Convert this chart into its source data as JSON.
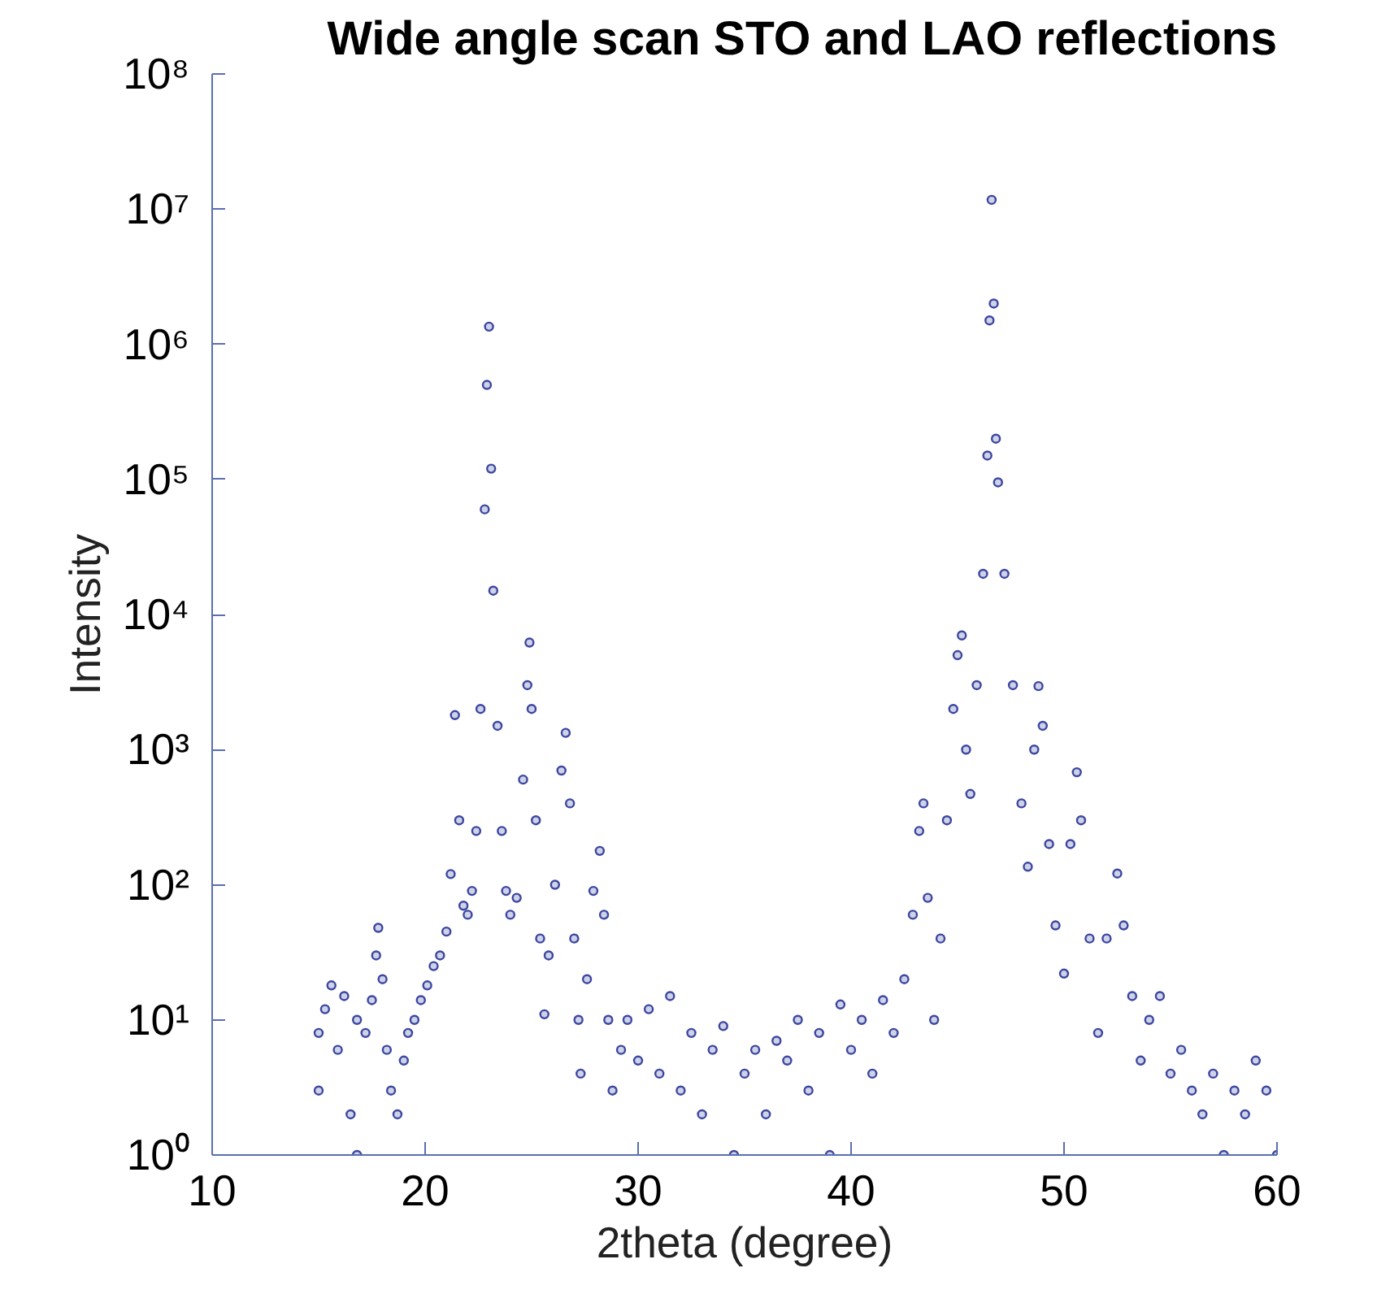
{
  "chart_data": {
    "type": "scatter",
    "title": "Wide angle scan STO and LAO reflections",
    "xlabel": "2theta (degree)",
    "ylabel": "Intensity",
    "log": "y",
    "grid": false,
    "marker": "circle",
    "xlim": [
      10,
      60
    ],
    "xticks": [
      10,
      20,
      30,
      40,
      50,
      60
    ],
    "ylim": [
      1,
      100000000
    ],
    "yticks": [
      {
        "value": 1,
        "label": "10⁰"
      },
      {
        "value": 10,
        "label": "10¹"
      },
      {
        "value": 100,
        "label": "10²"
      },
      {
        "value": 1000,
        "label": "10³"
      },
      {
        "value": 10000,
        "label": "10⁴"
      },
      {
        "value": 100000,
        "label": "10⁵"
      },
      {
        "value": 1000000,
        "label": "10⁶"
      },
      {
        "value": 10000000,
        "label": "10⁷"
      },
      {
        "value": 100000000,
        "label": "10⁸"
      }
    ],
    "series": [
      {
        "color": "#3b46a0",
        "x": [
          15.0,
          15.0,
          15.3,
          15.6,
          15.9,
          16.2,
          16.5,
          16.8,
          16.8,
          17.2,
          17.5,
          17.7,
          17.8,
          18.0,
          18.2,
          18.4,
          18.7,
          19.0,
          19.2,
          19.5,
          19.8,
          20.1,
          20.4,
          20.7,
          21.0,
          21.2,
          21.4,
          21.6,
          21.8,
          22.0,
          22.2,
          22.4,
          22.6,
          22.8,
          22.9,
          23.0,
          23.1,
          23.2,
          23.4,
          23.6,
          23.8,
          24.0,
          24.3,
          24.6,
          24.8,
          24.9,
          25.0,
          25.2,
          25.4,
          25.6,
          25.8,
          26.1,
          26.4,
          26.6,
          26.8,
          27.0,
          27.2,
          27.3,
          27.6,
          27.9,
          28.2,
          28.4,
          28.6,
          28.8,
          29.2,
          29.5,
          30.0,
          30.5,
          31.0,
          31.5,
          32.0,
          32.5,
          33.0,
          33.5,
          34.0,
          34.5,
          35.0,
          35.5,
          36.0,
          36.5,
          37.0,
          37.5,
          38.0,
          38.5,
          39.0,
          39.5,
          40.0,
          40.5,
          41.0,
          41.5,
          42.0,
          42.5,
          42.9,
          43.2,
          43.4,
          43.6,
          43.9,
          44.2,
          44.5,
          44.8,
          45.0,
          45.2,
          45.4,
          45.6,
          45.9,
          46.2,
          46.4,
          46.5,
          46.6,
          46.7,
          46.8,
          46.9,
          47.2,
          47.6,
          48.0,
          48.3,
          48.6,
          48.8,
          49.0,
          49.3,
          49.6,
          50.0,
          50.3,
          50.6,
          50.8,
          51.2,
          51.6,
          52.0,
          52.5,
          52.8,
          53.2,
          53.6,
          54.0,
          54.5,
          55.0,
          55.5,
          56.0,
          56.5,
          57.0,
          57.5,
          58.0,
          58.5,
          59.0,
          59.5,
          60.0
        ],
        "values": [
          3,
          8,
          12,
          18,
          6,
          15,
          2,
          10,
          1,
          8,
          14,
          30,
          48,
          20,
          6,
          3,
          2,
          5,
          8,
          10,
          14,
          18,
          25,
          30,
          45,
          120,
          1800,
          300,
          70,
          60,
          90,
          250,
          2000,
          60000,
          500000,
          1350000,
          120000,
          15000,
          1500,
          250,
          90,
          60,
          80,
          600,
          3000,
          6200,
          2000,
          300,
          40,
          11,
          30,
          100,
          700,
          1330,
          400,
          40,
          10,
          4,
          20,
          90,
          178,
          60,
          10,
          3,
          6,
          10,
          5,
          12,
          4,
          15,
          3,
          8,
          2,
          6,
          9,
          1,
          4,
          6,
          2,
          7,
          5,
          10,
          3,
          8,
          1,
          13,
          6,
          10,
          4,
          14,
          8,
          20,
          60,
          250,
          400,
          80,
          10,
          40,
          300,
          2000,
          5000,
          7000,
          1000,
          470,
          3000,
          20000,
          150000,
          1500000,
          11700000,
          2000000,
          200000,
          95000,
          20000,
          3000,
          400,
          136,
          1000,
          2950,
          1500,
          200,
          50,
          22,
          200,
          680,
          300,
          40,
          8,
          40,
          121,
          50,
          15,
          5,
          10,
          15,
          4,
          6,
          3,
          2,
          4,
          1,
          3,
          2,
          5,
          3,
          1
        ]
      }
    ]
  }
}
